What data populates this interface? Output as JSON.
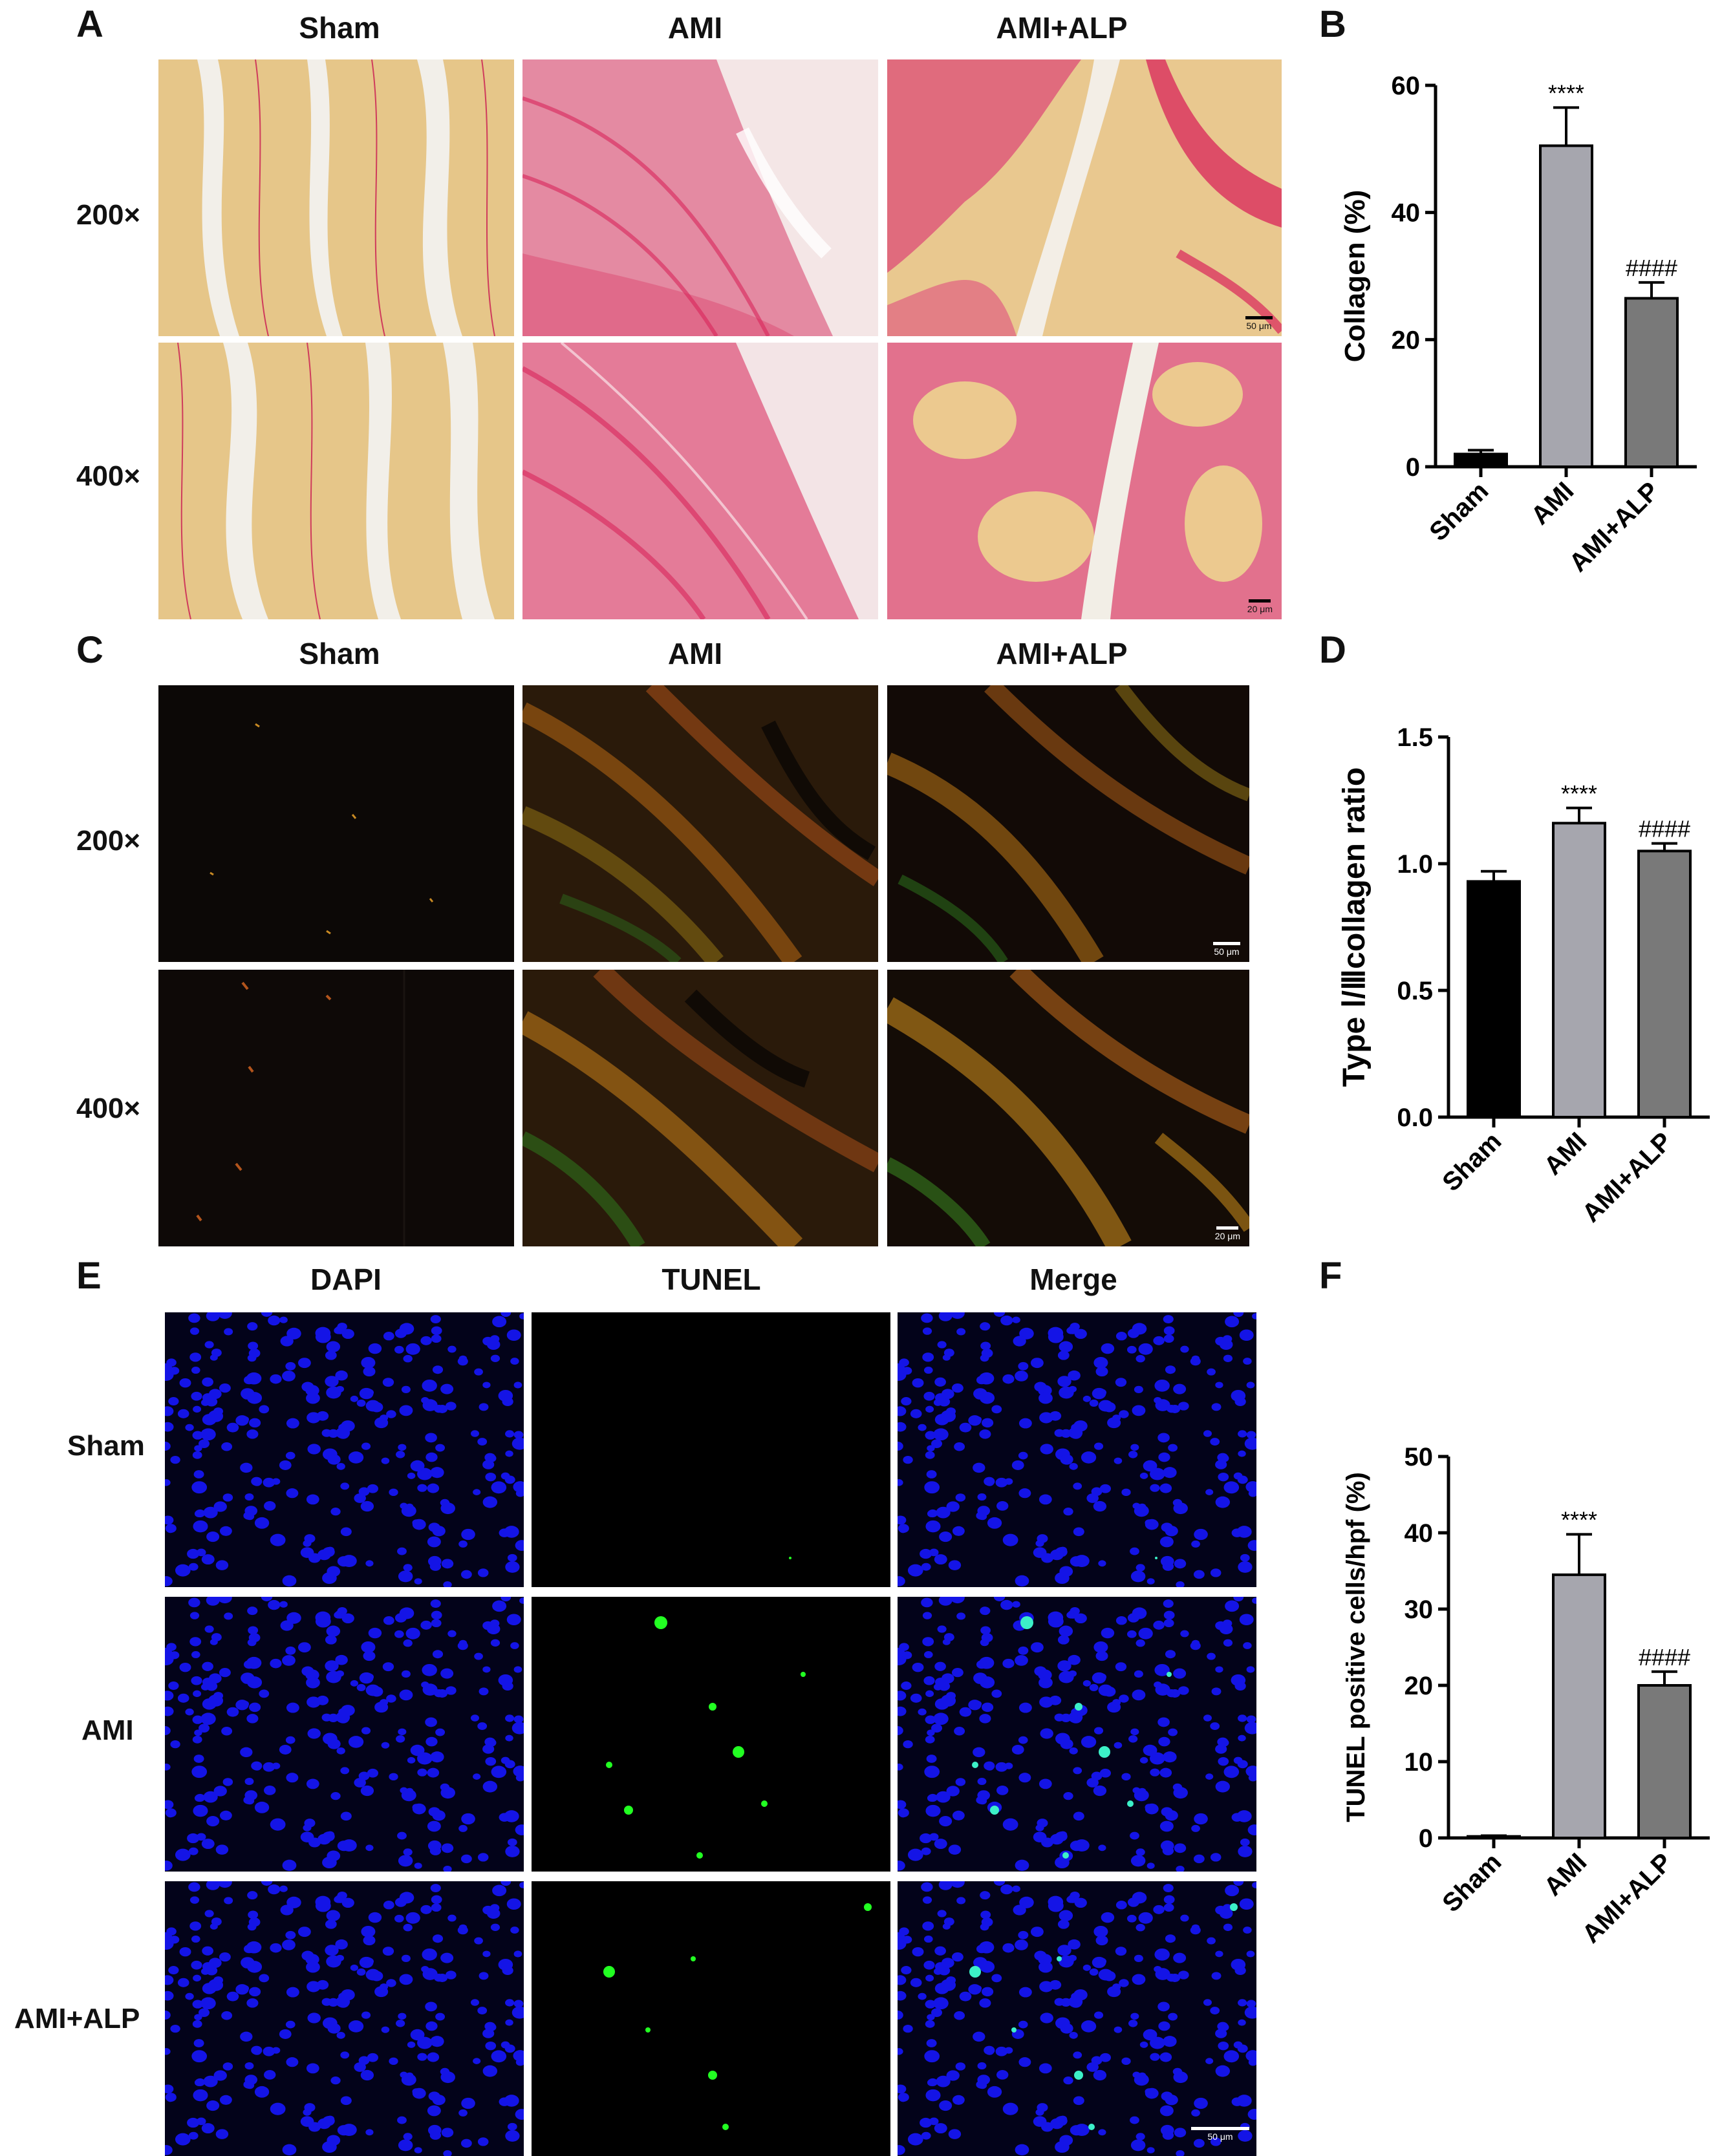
{
  "letters": {
    "a": "A",
    "b": "B",
    "c": "C",
    "d": "D",
    "e": "E",
    "f": "F"
  },
  "panel_a": {
    "columns": [
      "Sham",
      "AMI",
      "AMI+ALP"
    ],
    "rows": [
      "200×",
      "400×"
    ],
    "scale_labels": [
      "50 μm",
      "20 μm"
    ]
  },
  "panel_c": {
    "columns": [
      "Sham",
      "AMI",
      "AMI+ALP"
    ],
    "rows": [
      "200×",
      "400×"
    ],
    "scale_labels": [
      "50 μm",
      "20 μm"
    ]
  },
  "panel_e": {
    "columns": [
      "DAPI",
      "TUNEL",
      "Merge"
    ],
    "rows": [
      "Sham",
      "AMI",
      "AMI+ALP"
    ],
    "scale_label": "50 μm"
  },
  "colors": {
    "sham_bar": "#000000",
    "ami_bar": "#a6a6ae",
    "amialp_bar": "#797979",
    "picro_bg": "#e9c98c",
    "picro_red": "#d8245a",
    "polar_bg": "#0c0806",
    "dapi": "#1414e6",
    "tunel": "#22ff22"
  },
  "chart_data": [
    {
      "id": "B",
      "type": "bar",
      "categories": [
        "Sham",
        "AMI",
        "AMI+ALP"
      ],
      "values": [
        2,
        50.5,
        26.5
      ],
      "errors": [
        0.6,
        6,
        2.5
      ],
      "significance": [
        "",
        "****",
        "####"
      ],
      "ylabel": "Collagen (%)",
      "ylim": [
        0,
        60
      ],
      "yticks": [
        0,
        20,
        40,
        60
      ],
      "ytick_labels": [
        "0",
        "20",
        "40",
        "60"
      ]
    },
    {
      "id": "D",
      "type": "bar",
      "categories": [
        "Sham",
        "AMI",
        "AMI+ALP"
      ],
      "values": [
        0.93,
        1.16,
        1.05
      ],
      "errors": [
        0.04,
        0.06,
        0.03
      ],
      "significance": [
        "",
        "****",
        "####"
      ],
      "ylabel": "Type Ⅰ/Ⅲcollagen ratio",
      "ylim": [
        0,
        1.5
      ],
      "yticks": [
        0,
        0.5,
        1.0,
        1.5
      ],
      "ytick_labels": [
        "0.0",
        "0.5",
        "1.0",
        "1.5"
      ]
    },
    {
      "id": "F",
      "type": "bar",
      "categories": [
        "Sham",
        "AMI",
        "AMI+ALP"
      ],
      "values": [
        0.2,
        34.5,
        20
      ],
      "errors": [
        0.1,
        5.3,
        1.8
      ],
      "significance": [
        "",
        "****",
        "####"
      ],
      "ylabel": "TUNEL positive cells/hpf (%)",
      "ylim": [
        0,
        50
      ],
      "yticks": [
        0,
        10,
        20,
        30,
        40,
        50
      ],
      "ytick_labels": [
        "0",
        "10",
        "20",
        "30",
        "40",
        "50"
      ]
    }
  ]
}
